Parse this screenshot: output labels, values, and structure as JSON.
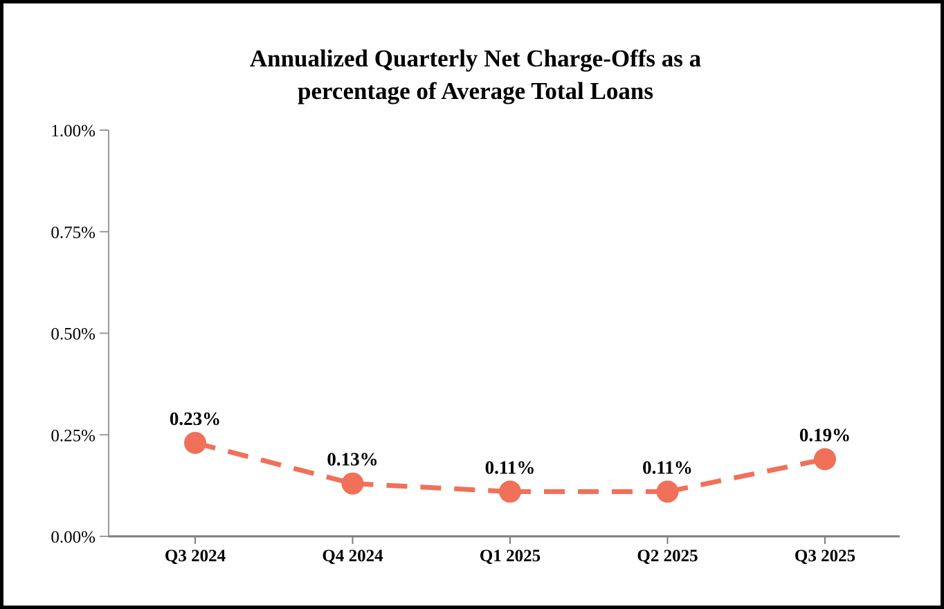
{
  "window": {
    "background_color": "#FFFFFF",
    "border_color": "#000000"
  },
  "chart_data": {
    "type": "line",
    "title": "Annualized Quarterly Net Charge-Offs as a percentage of Average Total Loans",
    "title_lines": [
      "Annualized Quarterly Net Charge-Offs as a",
      "percentage of Average Total Loans"
    ],
    "categories": [
      "Q3 2024",
      "Q4 2024",
      "Q1 2025",
      "Q2 2025",
      "Q3 2025"
    ],
    "values": [
      0.23,
      0.13,
      0.11,
      0.11,
      0.19
    ],
    "data_labels": [
      "0.23%",
      "0.13%",
      "0.11%",
      "0.11%",
      "0.19%"
    ],
    "y_axis": {
      "min": 0,
      "max": 1,
      "ticks": [
        {
          "label": "1.00%",
          "value": 1.0
        },
        {
          "label": "0.75%",
          "value": 0.75
        },
        {
          "label": "0.50%",
          "value": 0.5
        },
        {
          "label": "0.25%",
          "value": 0.25
        },
        {
          "label": "0.00%",
          "value": 0.0
        }
      ]
    },
    "xlabel": "",
    "ylabel": "",
    "grid": false,
    "legend_position": "none",
    "line_style": "dashed",
    "series_color": "#F0705A",
    "marker_shape": "circle",
    "y_axis_color": "#9A9A9A",
    "x_axis_color": "#7D7D7D",
    "text_color": "#000000"
  }
}
